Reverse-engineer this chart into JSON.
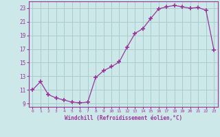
{
  "x": [
    0,
    1,
    2,
    3,
    4,
    5,
    6,
    7,
    8,
    9,
    10,
    11,
    12,
    13,
    14,
    15,
    16,
    17,
    18,
    19,
    20,
    21,
    22,
    23
  ],
  "y": [
    11.0,
    12.2,
    10.3,
    9.8,
    9.5,
    9.2,
    9.1,
    9.2,
    12.8,
    13.8,
    14.4,
    15.1,
    17.3,
    19.3,
    20.0,
    21.5,
    22.9,
    23.2,
    23.4,
    23.2,
    23.0,
    23.1,
    22.7,
    16.9
  ],
  "line_color": "#993399",
  "marker": "+",
  "marker_size": 4,
  "marker_lw": 1.2,
  "bg_color": "#cce8e8",
  "grid_color": "#aacccc",
  "xlabel": "Windchill (Refroidissement éolien,°C)",
  "xlabel_color": "#993399",
  "tick_color": "#993399",
  "spine_color": "#993399",
  "ylim": [
    8.5,
    24.0
  ],
  "yticks": [
    9,
    11,
    13,
    15,
    17,
    19,
    21,
    23
  ],
  "xlim": [
    -0.5,
    23.5
  ],
  "xticks": [
    0,
    1,
    2,
    3,
    4,
    5,
    6,
    7,
    8,
    9,
    10,
    11,
    12,
    13,
    14,
    15,
    16,
    17,
    18,
    19,
    20,
    21,
    22,
    23
  ]
}
